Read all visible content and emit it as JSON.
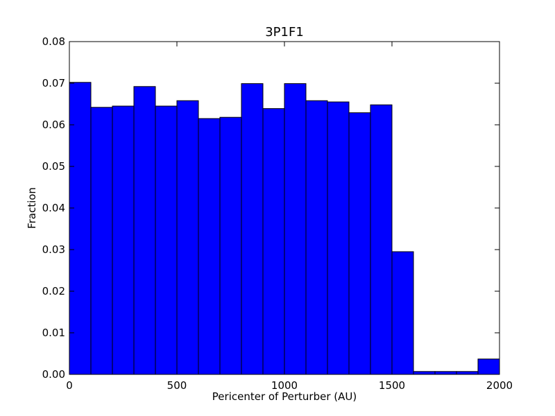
{
  "chart_data": {
    "type": "bar",
    "title": "3P1F1",
    "xlabel": "Pericenter of Perturber (AU)",
    "ylabel": "Fraction",
    "xlim": [
      0,
      2000
    ],
    "ylim": [
      0,
      0.08
    ],
    "bin_edges": [
      0,
      100,
      200,
      300,
      400,
      500,
      600,
      700,
      800,
      900,
      1000,
      1100,
      1200,
      1300,
      1400,
      1500,
      1600,
      1700,
      1800,
      1900,
      2000
    ],
    "values": [
      0.0702,
      0.0642,
      0.0645,
      0.0692,
      0.0645,
      0.0658,
      0.0615,
      0.0618,
      0.0699,
      0.0639,
      0.0699,
      0.0658,
      0.0655,
      0.0629,
      0.0648,
      0.0295,
      0.0007,
      0.0007,
      0.0007,
      0.0037
    ],
    "xticks": [
      {
        "value": 0,
        "label": "0"
      },
      {
        "value": 500,
        "label": "500"
      },
      {
        "value": 1000,
        "label": "1000"
      },
      {
        "value": 1500,
        "label": "1500"
      },
      {
        "value": 2000,
        "label": "2000"
      }
    ],
    "yticks": [
      {
        "value": 0.0,
        "label": "0.00"
      },
      {
        "value": 0.01,
        "label": "0.01"
      },
      {
        "value": 0.02,
        "label": "0.02"
      },
      {
        "value": 0.03,
        "label": "0.03"
      },
      {
        "value": 0.04,
        "label": "0.04"
      },
      {
        "value": 0.05,
        "label": "0.05"
      },
      {
        "value": 0.06,
        "label": "0.06"
      },
      {
        "value": 0.07,
        "label": "0.07"
      },
      {
        "value": 0.08,
        "label": "0.08"
      }
    ],
    "bar_color": "#0000ff",
    "edge_color": "#000000",
    "grid": false,
    "legend": "none"
  }
}
